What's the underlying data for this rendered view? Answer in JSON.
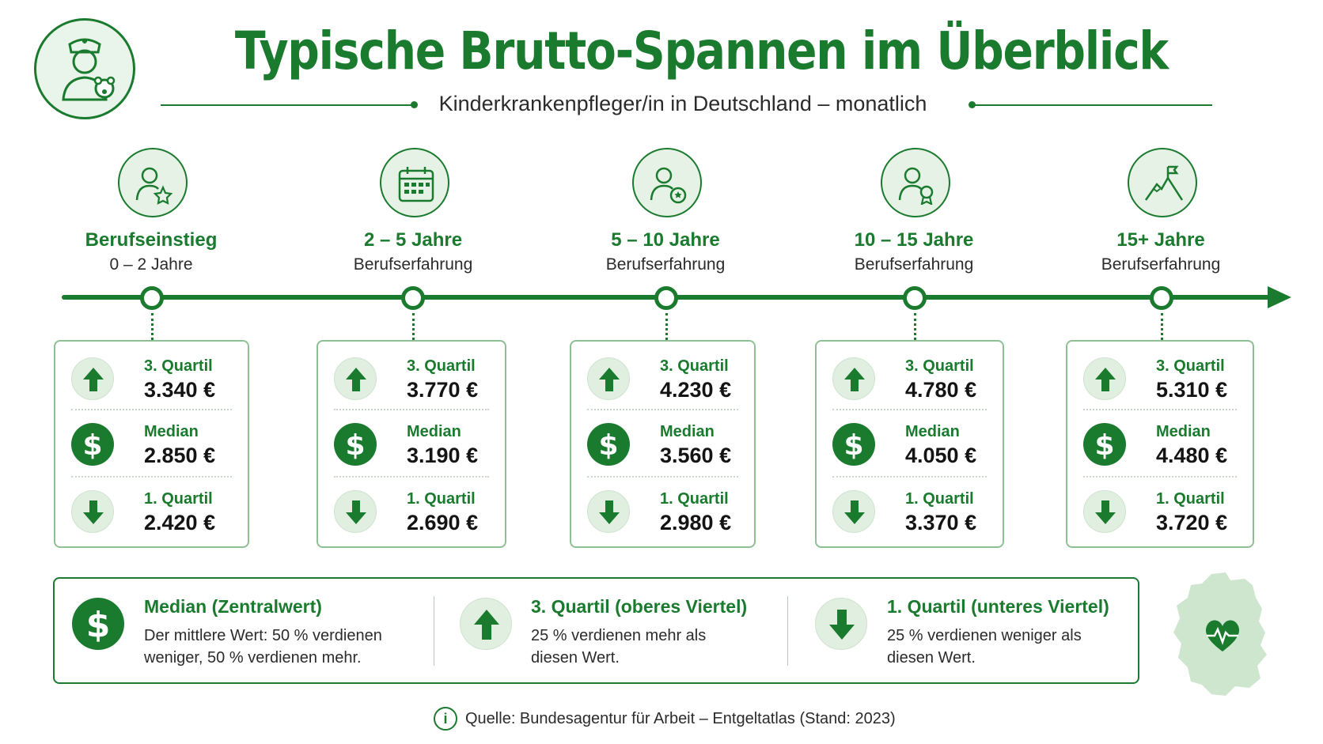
{
  "header": {
    "title": "Typische Brutto-Spannen im Überblick",
    "subtitle": "Kinderkrankenpfleger/in in Deutschland – monatlich",
    "logo_icon": "nurse-with-teddy-icon"
  },
  "stages": [
    {
      "label": "Berufseinstieg",
      "sub": "0 – 2 Jahre",
      "icon": "person-star-icon",
      "q3_label": "3. Quartil",
      "q3_value": "3.340 €",
      "median_label": "Median",
      "median_value": "2.850 €",
      "q1_label": "1. Quartil",
      "q1_value": "2.420 €"
    },
    {
      "label": "2 – 5 Jahre",
      "sub": "Berufserfahrung",
      "icon": "calendar-icon",
      "q3_label": "3. Quartil",
      "q3_value": "3.770 €",
      "median_label": "Median",
      "median_value": "3.190 €",
      "q1_label": "1. Quartil",
      "q1_value": "2.690 €"
    },
    {
      "label": "5 – 10 Jahre",
      "sub": "Berufserfahrung",
      "icon": "person-badge-icon",
      "q3_label": "3. Quartil",
      "q3_value": "4.230 €",
      "median_label": "Median",
      "median_value": "3.560 €",
      "q1_label": "1. Quartil",
      "q1_value": "2.980 €"
    },
    {
      "label": "10 – 15 Jahre",
      "sub": "Berufserfahrung",
      "icon": "person-award-icon",
      "q3_label": "3. Quartil",
      "q3_value": "4.780 €",
      "median_label": "Median",
      "median_value": "4.050 €",
      "q1_label": "1. Quartil",
      "q1_value": "3.370 €"
    },
    {
      "label": "15+ Jahre",
      "sub": "Berufserfahrung",
      "icon": "mountain-flag-icon",
      "q3_label": "3. Quartil",
      "q3_value": "5.310 €",
      "median_label": "Median",
      "median_value": "4.480 €",
      "q1_label": "1. Quartil",
      "q1_value": "3.720 €"
    }
  ],
  "legend": [
    {
      "icon": "dollar-icon",
      "title": "Median (Zentralwert)",
      "text": "Der mittlere Wert: 50 % verdienen weniger, 50 % verdienen mehr."
    },
    {
      "icon": "arrow-up-icon",
      "title": "3. Quartil (oberes Viertel)",
      "text": "25 % verdienen mehr als diesen Wert."
    },
    {
      "icon": "arrow-down-icon",
      "title": "1. Quartil (unteres Viertel)",
      "text": "25 % verdienen weniger als diesen Wert."
    }
  ],
  "map_icon": "germany-heart-map-icon",
  "source": {
    "icon": "info-icon",
    "info_glyph": "i",
    "text": "Quelle: Bundesagentur für Arbeit – Entgeltatlas (Stand: 2023)"
  },
  "colors": {
    "primary": "#1a7a2e",
    "light": "#e6f2e6",
    "border": "#8fbf95"
  }
}
